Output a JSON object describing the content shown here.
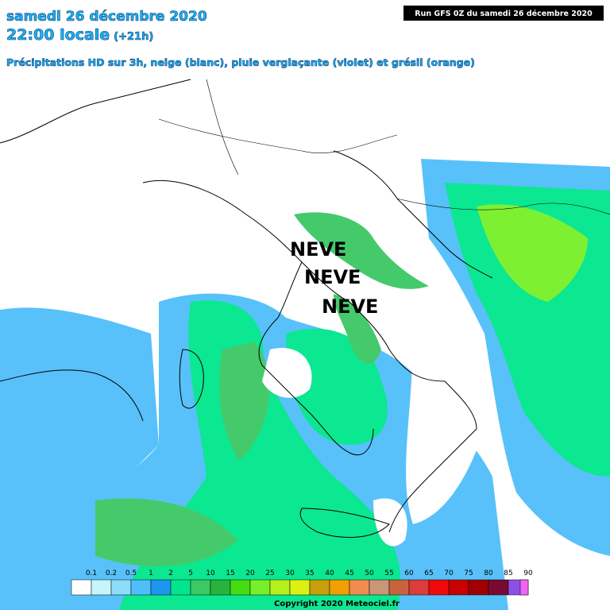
{
  "header": {
    "date": "samedi 26 décembre 2020",
    "time": "22:00 locale",
    "offset": "(+21h)",
    "description": "Précipitations HD sur 3h, neige (blanc), pluie verglaçante (violet) et grésil (orange)",
    "run": "Run GFS 0Z du samedi 26 décembre 2020"
  },
  "annotations": [
    "NEVE",
    "NEVE",
    "NEVE"
  ],
  "legend": {
    "labels": [
      "0.1",
      "0.2",
      "0.5",
      "1",
      "2",
      "5",
      "10",
      "15",
      "20",
      "25",
      "30",
      "35",
      "40",
      "45",
      "50",
      "55",
      "60",
      "65",
      "70",
      "75",
      "80",
      "85",
      "90"
    ],
    "colors": [
      "#ffffff",
      "#c8f5fa",
      "#8cdcfa",
      "#50befa",
      "#1e96f0",
      "#00e68c",
      "#3cc864",
      "#28b43c",
      "#46dc14",
      "#78f028",
      "#b4f01e",
      "#dcf014",
      "#c8a00a",
      "#f0a000",
      "#f08c50",
      "#c89678",
      "#c8643c",
      "#dc3c3c",
      "#f00a0a",
      "#c80000",
      "#a00000",
      "#780a32",
      "#8c50e6"
    ],
    "last_color": "#f064f0"
  },
  "copyright": "Copyright 2020 Meteociel.fr"
}
